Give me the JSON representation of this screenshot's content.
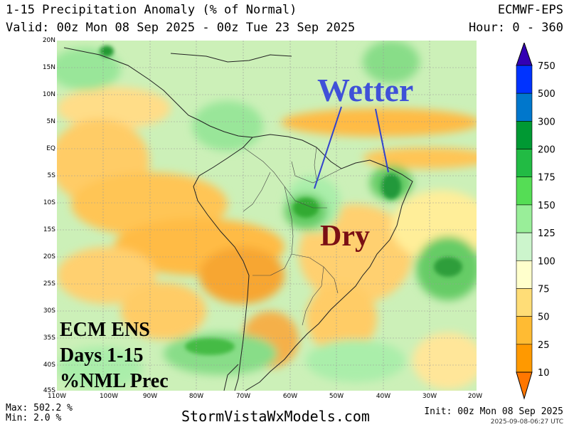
{
  "header": {
    "title": "1-15 Precipitation Anomaly (% of Normal)",
    "model": "ECMWF-EPS",
    "valid": "Valid: 00z Mon 08 Sep 2025 - 00z Tue 23 Sep 2025",
    "hour": "Hour: 0 - 360"
  },
  "map": {
    "lat_labels": [
      "20N",
      "15N",
      "10N",
      "5N",
      "EQ",
      "5S",
      "10S",
      "15S",
      "20S",
      "25S",
      "30S",
      "35S",
      "40S",
      "45S"
    ],
    "lon_labels": [
      "110W",
      "100W",
      "90W",
      "80W",
      "70W",
      "60W",
      "50W",
      "40W",
      "30W",
      "20W"
    ],
    "annotations": {
      "wetter": "Wetter",
      "dry": "Dry",
      "box_line1": "ECM ENS",
      "box_line2": "Days 1-15",
      "box_line3": "%NML Prec"
    }
  },
  "colorbar": {
    "labels": [
      "750",
      "500",
      "300",
      "200",
      "175",
      "150",
      "125",
      "100",
      "75",
      "50",
      "25",
      "10"
    ],
    "colors": [
      "#3300b3",
      "#0033ff",
      "#0077cc",
      "#009933",
      "#22bb44",
      "#55dd55",
      "#99ee99",
      "#ccf5cc",
      "#ffffcc",
      "#ffdd77",
      "#ffbb33",
      "#ff9900",
      "#ff7700"
    ]
  },
  "footer": {
    "max": "Max: 502.2 %",
    "min": "Min: 2.0 %",
    "site": "StormVistaWxModels.com",
    "init": "Init: 00z Mon 08 Sep 2025",
    "stamp": "2025-09-08-06:27 UTC"
  }
}
